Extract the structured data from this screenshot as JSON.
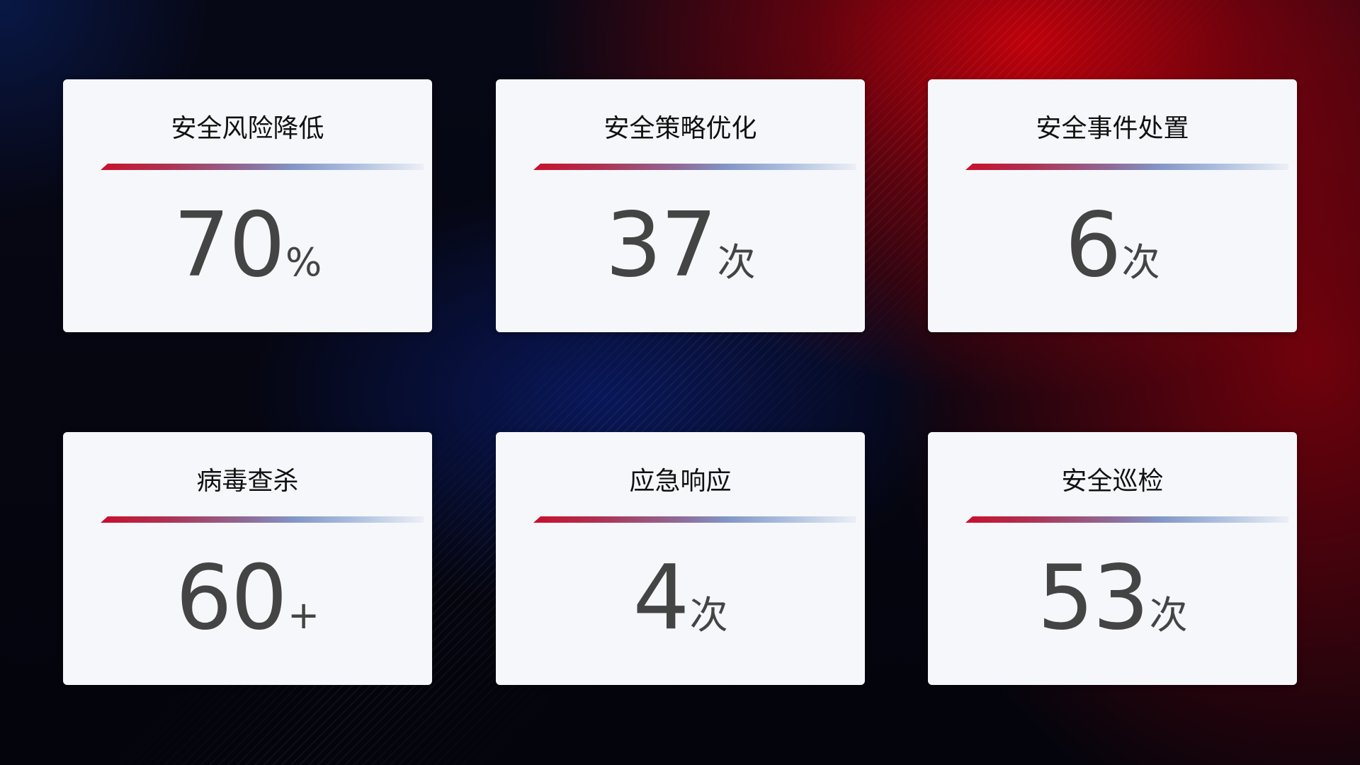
{
  "cards": [
    {
      "title": "安全风险降低",
      "value": "70",
      "unit": "%"
    },
    {
      "title": "安全策略优化",
      "value": "37",
      "unit": "次"
    },
    {
      "title": "安全事件处置",
      "value": "6",
      "unit": "次"
    },
    {
      "title": "病毒查杀",
      "value": "60",
      "unit": "+"
    },
    {
      "title": "应急响应",
      "value": "4",
      "unit": "次"
    },
    {
      "title": "安全巡检",
      "value": "53",
      "unit": "次"
    }
  ],
  "colors": {
    "accent_red": "#c8102e",
    "accent_blue": "#8296c6",
    "card_bg": "#f6f7fb",
    "value_text": "#444444"
  }
}
